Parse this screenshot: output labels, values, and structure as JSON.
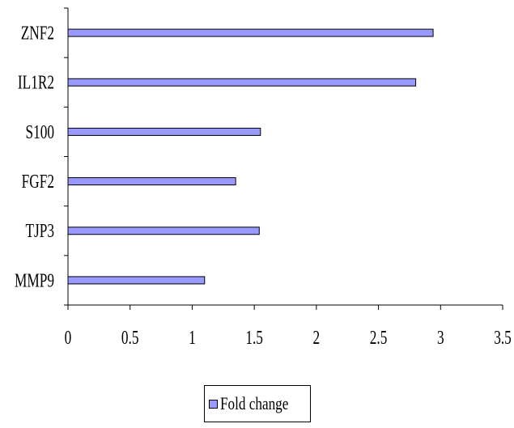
{
  "chart_data": {
    "type": "bar",
    "orientation": "horizontal",
    "categories": [
      "ZNF2",
      "IL1R2",
      "S100",
      "FGF2",
      "TJP3",
      "MMP9"
    ],
    "series": [
      {
        "name": "Fold change",
        "values": [
          2.94,
          2.8,
          1.55,
          1.35,
          1.54,
          1.1
        ]
      }
    ],
    "xlim": [
      0,
      3.5
    ],
    "x_ticks": [
      "0",
      "0.5",
      "1",
      "1.5",
      "2",
      "2.5",
      "3",
      "3.5"
    ],
    "grid": false,
    "legend_position": "bottom",
    "colors": {
      "bar_fill": "#9999ff",
      "bar_stroke": "#000000",
      "axis": "#000000"
    }
  }
}
